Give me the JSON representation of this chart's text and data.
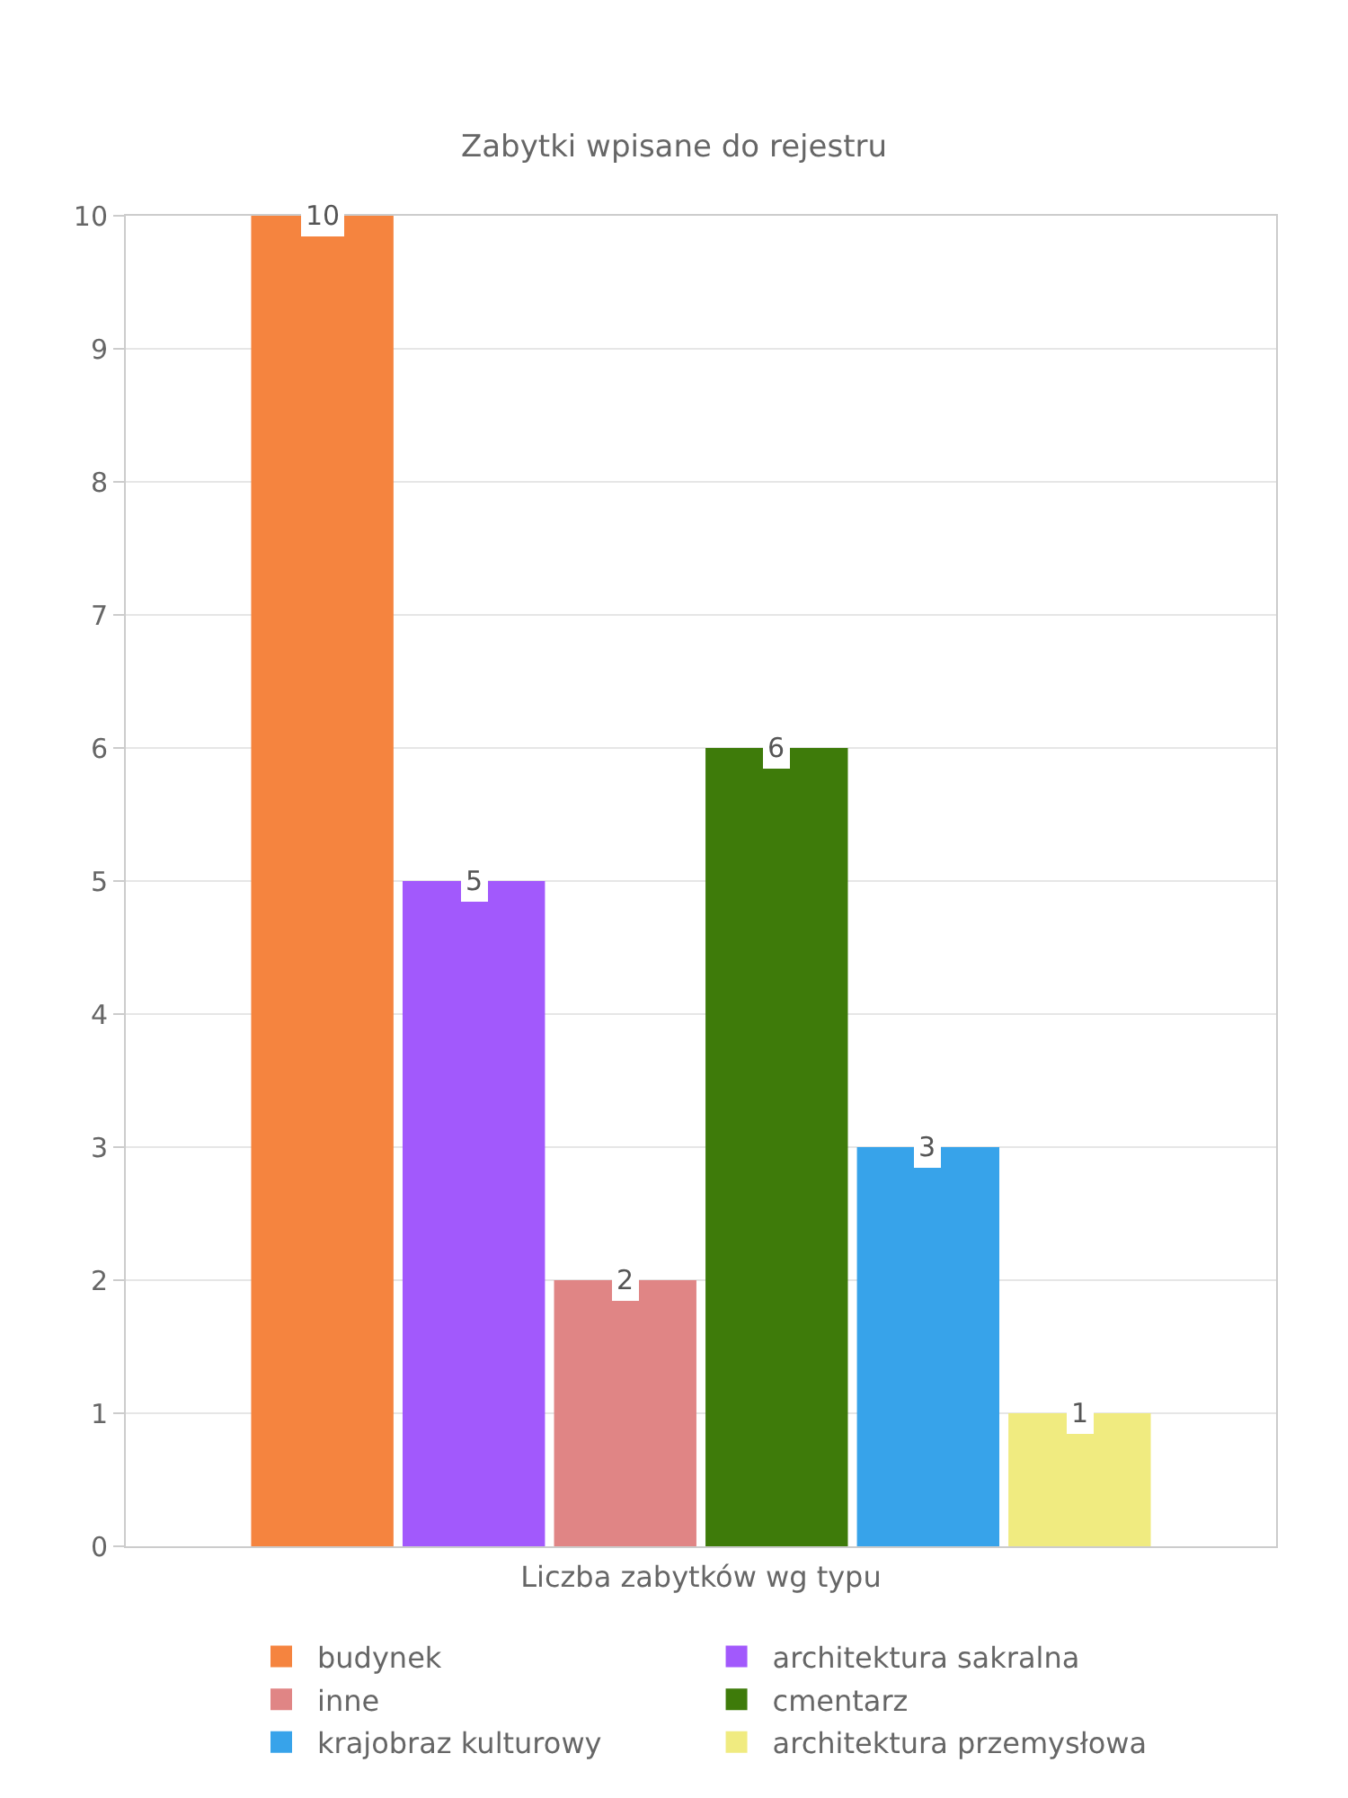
{
  "chart_data": {
    "type": "bar",
    "title": "Zabytki wpisane do rejestru",
    "xlabel": "Liczba zabytków wg typu",
    "categories": [
      null
    ],
    "series": [
      {
        "name": "budynek",
        "color": "#f5843f",
        "values": [
          10
        ]
      },
      {
        "name": "architektura sakralna",
        "color": "#a259fc",
        "values": [
          5
        ]
      },
      {
        "name": "inne",
        "color": "#e08585",
        "values": [
          2
        ]
      },
      {
        "name": "cmentarz",
        "color": "#3e7b0a",
        "values": [
          6
        ]
      },
      {
        "name": "krajobraz kulturowy",
        "color": "#37a3ea",
        "values": [
          3
        ]
      },
      {
        "name": "architektura przemysłowa",
        "color": "#f0eb80",
        "values": [
          1
        ]
      }
    ],
    "ylim": [
      0,
      10
    ],
    "yticks": [
      0,
      1,
      2,
      3,
      4,
      5,
      6,
      7,
      8,
      9,
      10
    ],
    "grid": "y",
    "legend": "bottom",
    "data_labels": true
  }
}
